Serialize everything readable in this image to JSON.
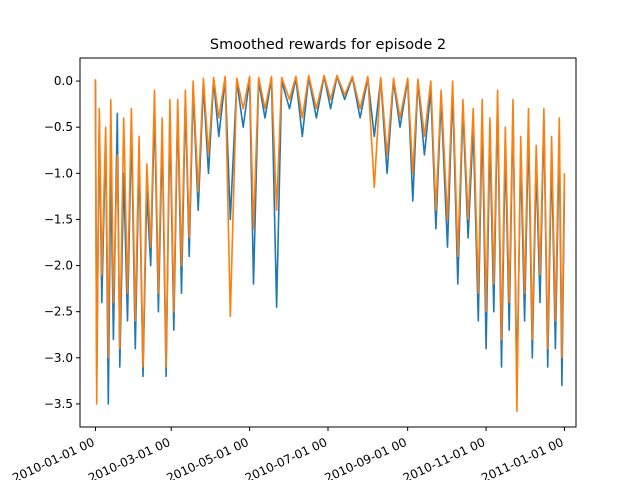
{
  "chart_data": {
    "type": "line",
    "title": "Smoothed rewards for episode 2",
    "xlabel": "",
    "ylabel": "",
    "x_axis": {
      "kind": "date",
      "range": [
        "2009-12-20",
        "2011-01-10"
      ],
      "ticks": [
        {
          "date": "2010-01-01",
          "label": "2010-01-01 00"
        },
        {
          "date": "2010-03-01",
          "label": "2010-03-01 00"
        },
        {
          "date": "2010-05-01",
          "label": "2010-05-01 00"
        },
        {
          "date": "2010-07-01",
          "label": "2010-07-01 00"
        },
        {
          "date": "2010-09-01",
          "label": "2010-09-01 00"
        },
        {
          "date": "2010-11-01",
          "label": "2010-11-01 00"
        },
        {
          "date": "2011-01-01",
          "label": "2011-01-01 00"
        }
      ]
    },
    "y_axis": {
      "range": [
        -3.75,
        0.25
      ],
      "ticks": [
        0.0,
        -0.5,
        -1.0,
        -1.5,
        -2.0,
        -2.5,
        -3.0,
        -3.5
      ],
      "tick_labels": [
        "0.0",
        "−0.5",
        "−1.0",
        "−1.5",
        "−2.0",
        "−2.5",
        "−3.0",
        "−3.5"
      ]
    },
    "grid": false,
    "legend": "none",
    "series": [
      {
        "color": "#1f77b4",
        "points": [
          [
            "2010-01-01",
            0.0
          ],
          [
            "2010-01-02",
            -3.2
          ],
          [
            "2010-01-04",
            -0.4
          ],
          [
            "2010-01-06",
            -2.4
          ],
          [
            "2010-01-09",
            -0.6
          ],
          [
            "2010-01-11",
            -3.5
          ],
          [
            "2010-01-13",
            -0.9
          ],
          [
            "2010-01-15",
            -2.8
          ],
          [
            "2010-01-18",
            -0.35
          ],
          [
            "2010-01-20",
            -3.1
          ],
          [
            "2010-01-23",
            -1.0
          ],
          [
            "2010-01-26",
            -2.6
          ],
          [
            "2010-01-29",
            -0.5
          ],
          [
            "2010-02-01",
            -2.9
          ],
          [
            "2010-02-04",
            -0.8
          ],
          [
            "2010-02-07",
            -3.2
          ],
          [
            "2010-02-10",
            -1.2
          ],
          [
            "2010-02-13",
            -2.0
          ],
          [
            "2010-02-16",
            -0.3
          ],
          [
            "2010-02-19",
            -2.5
          ],
          [
            "2010-02-22",
            -0.6
          ],
          [
            "2010-02-25",
            -3.2
          ],
          [
            "2010-02-28",
            -0.4
          ],
          [
            "2010-03-03",
            -2.7
          ],
          [
            "2010-03-06",
            -0.3
          ],
          [
            "2010-03-09",
            -2.3
          ],
          [
            "2010-03-12",
            -0.2
          ],
          [
            "2010-03-15",
            -1.9
          ],
          [
            "2010-03-18",
            -0.1
          ],
          [
            "2010-03-22",
            -1.4
          ],
          [
            "2010-03-26",
            -0.05
          ],
          [
            "2010-03-30",
            -1.0
          ],
          [
            "2010-04-03",
            0.0
          ],
          [
            "2010-04-07",
            -0.6
          ],
          [
            "2010-04-12",
            0.02
          ],
          [
            "2010-04-16",
            -1.5
          ],
          [
            "2010-04-21",
            0.0
          ],
          [
            "2010-04-26",
            -0.5
          ],
          [
            "2010-05-01",
            0.02
          ],
          [
            "2010-05-04",
            -2.2
          ],
          [
            "2010-05-08",
            0.0
          ],
          [
            "2010-05-13",
            -0.4
          ],
          [
            "2010-05-18",
            0.03
          ],
          [
            "2010-05-22",
            -2.45
          ],
          [
            "2010-05-26",
            0.0
          ],
          [
            "2010-06-01",
            -0.3
          ],
          [
            "2010-06-06",
            0.03
          ],
          [
            "2010-06-11",
            -0.6
          ],
          [
            "2010-06-16",
            0.04
          ],
          [
            "2010-06-22",
            -0.4
          ],
          [
            "2010-06-28",
            0.05
          ],
          [
            "2010-07-03",
            -0.3
          ],
          [
            "2010-07-08",
            0.05
          ],
          [
            "2010-07-14",
            -0.2
          ],
          [
            "2010-07-20",
            0.04
          ],
          [
            "2010-07-26",
            -0.4
          ],
          [
            "2010-08-01",
            0.03
          ],
          [
            "2010-08-06",
            -0.6
          ],
          [
            "2010-08-11",
            0.02
          ],
          [
            "2010-08-16",
            -1.0
          ],
          [
            "2010-08-21",
            0.0
          ],
          [
            "2010-08-26",
            -0.5
          ],
          [
            "2010-09-01",
            0.01
          ],
          [
            "2010-09-05",
            -1.3
          ],
          [
            "2010-09-09",
            0.0
          ],
          [
            "2010-09-14",
            -0.8
          ],
          [
            "2010-09-19",
            -0.1
          ],
          [
            "2010-09-23",
            -1.6
          ],
          [
            "2010-09-27",
            -0.2
          ],
          [
            "2010-10-02",
            -1.8
          ],
          [
            "2010-10-06",
            -0.1
          ],
          [
            "2010-10-10",
            -2.2
          ],
          [
            "2010-10-14",
            -0.3
          ],
          [
            "2010-10-18",
            -1.7
          ],
          [
            "2010-10-22",
            -0.5
          ],
          [
            "2010-10-26",
            -2.6
          ],
          [
            "2010-10-29",
            -0.4
          ],
          [
            "2010-11-01",
            -2.9
          ],
          [
            "2010-11-04",
            -0.6
          ],
          [
            "2010-11-07",
            -2.5
          ],
          [
            "2010-11-10",
            -0.2
          ],
          [
            "2010-11-13",
            -3.1
          ],
          [
            "2010-11-16",
            -0.7
          ],
          [
            "2010-11-19",
            -2.7
          ],
          [
            "2010-11-22",
            -0.3
          ],
          [
            "2010-11-25",
            -3.3
          ],
          [
            "2010-11-28",
            -0.8
          ],
          [
            "2010-12-01",
            -2.6
          ],
          [
            "2010-12-04",
            -0.5
          ],
          [
            "2010-12-07",
            -3.0
          ],
          [
            "2010-12-10",
            -0.9
          ],
          [
            "2010-12-13",
            -2.4
          ],
          [
            "2010-12-16",
            -0.4
          ],
          [
            "2010-12-19",
            -3.1
          ],
          [
            "2010-12-22",
            -0.8
          ],
          [
            "2010-12-25",
            -2.9
          ],
          [
            "2010-12-28",
            -0.6
          ],
          [
            "2010-12-30",
            -3.3
          ],
          [
            "2011-01-01",
            -1.2
          ]
        ]
      },
      {
        "color": "#ff7f0e",
        "points": [
          [
            "2010-01-01",
            0.02
          ],
          [
            "2010-01-02",
            -3.5
          ],
          [
            "2010-01-04",
            -0.3
          ],
          [
            "2010-01-06",
            -2.1
          ],
          [
            "2010-01-09",
            -0.5
          ],
          [
            "2010-01-11",
            -3.0
          ],
          [
            "2010-01-13",
            -0.2
          ],
          [
            "2010-01-15",
            -2.4
          ],
          [
            "2010-01-18",
            -0.8
          ],
          [
            "2010-01-20",
            -2.9
          ],
          [
            "2010-01-23",
            -0.4
          ],
          [
            "2010-01-26",
            -2.3
          ],
          [
            "2010-01-29",
            -0.3
          ],
          [
            "2010-02-01",
            -2.6
          ],
          [
            "2010-02-04",
            -0.6
          ],
          [
            "2010-02-07",
            -3.1
          ],
          [
            "2010-02-10",
            -0.9
          ],
          [
            "2010-02-13",
            -1.8
          ],
          [
            "2010-02-16",
            -0.1
          ],
          [
            "2010-02-19",
            -2.3
          ],
          [
            "2010-02-22",
            -0.4
          ],
          [
            "2010-02-25",
            -3.1
          ],
          [
            "2010-02-28",
            -0.2
          ],
          [
            "2010-03-03",
            -2.5
          ],
          [
            "2010-03-06",
            -0.2
          ],
          [
            "2010-03-09",
            -2.0
          ],
          [
            "2010-03-12",
            -0.1
          ],
          [
            "2010-03-15",
            -1.7
          ],
          [
            "2010-03-18",
            0.0
          ],
          [
            "2010-03-22",
            -1.2
          ],
          [
            "2010-03-26",
            0.03
          ],
          [
            "2010-03-30",
            -0.8
          ],
          [
            "2010-04-03",
            0.04
          ],
          [
            "2010-04-07",
            -0.4
          ],
          [
            "2010-04-12",
            0.05
          ],
          [
            "2010-04-16",
            -2.55
          ],
          [
            "2010-04-21",
            0.03
          ],
          [
            "2010-04-26",
            -0.3
          ],
          [
            "2010-05-01",
            0.05
          ],
          [
            "2010-05-04",
            -1.6
          ],
          [
            "2010-05-08",
            0.04
          ],
          [
            "2010-05-13",
            -0.3
          ],
          [
            "2010-05-18",
            0.05
          ],
          [
            "2010-05-22",
            -1.4
          ],
          [
            "2010-05-26",
            0.04
          ],
          [
            "2010-06-01",
            -0.2
          ],
          [
            "2010-06-06",
            0.05
          ],
          [
            "2010-06-11",
            -0.4
          ],
          [
            "2010-06-16",
            0.06
          ],
          [
            "2010-06-22",
            -0.3
          ],
          [
            "2010-06-28",
            0.06
          ],
          [
            "2010-07-03",
            -0.2
          ],
          [
            "2010-07-08",
            0.06
          ],
          [
            "2010-07-14",
            -0.15
          ],
          [
            "2010-07-20",
            0.05
          ],
          [
            "2010-07-26",
            -0.3
          ],
          [
            "2010-08-01",
            0.05
          ],
          [
            "2010-08-06",
            -1.15
          ],
          [
            "2010-08-11",
            0.04
          ],
          [
            "2010-08-16",
            -0.8
          ],
          [
            "2010-08-21",
            0.03
          ],
          [
            "2010-08-26",
            -0.4
          ],
          [
            "2010-09-01",
            0.03
          ],
          [
            "2010-09-05",
            -1.0
          ],
          [
            "2010-09-09",
            0.02
          ],
          [
            "2010-09-14",
            -0.6
          ],
          [
            "2010-09-19",
            0.0
          ],
          [
            "2010-09-23",
            -1.4
          ],
          [
            "2010-09-27",
            -0.1
          ],
          [
            "2010-10-02",
            -1.5
          ],
          [
            "2010-10-06",
            0.0
          ],
          [
            "2010-10-10",
            -1.9
          ],
          [
            "2010-10-14",
            -0.2
          ],
          [
            "2010-10-18",
            -1.5
          ],
          [
            "2010-10-22",
            -0.3
          ],
          [
            "2010-10-26",
            -2.3
          ],
          [
            "2010-10-29",
            -0.2
          ],
          [
            "2010-11-01",
            -2.5
          ],
          [
            "2010-11-04",
            -0.4
          ],
          [
            "2010-11-07",
            -2.2
          ],
          [
            "2010-11-10",
            -0.1
          ],
          [
            "2010-11-13",
            -2.8
          ],
          [
            "2010-11-16",
            -0.5
          ],
          [
            "2010-11-19",
            -2.4
          ],
          [
            "2010-11-22",
            -0.2
          ],
          [
            "2010-11-25",
            -3.58
          ],
          [
            "2010-11-28",
            -0.6
          ],
          [
            "2010-12-01",
            -2.3
          ],
          [
            "2010-12-04",
            -0.3
          ],
          [
            "2010-12-07",
            -2.8
          ],
          [
            "2010-12-10",
            -0.7
          ],
          [
            "2010-12-13",
            -2.1
          ],
          [
            "2010-12-16",
            -0.3
          ],
          [
            "2010-12-19",
            -2.9
          ],
          [
            "2010-12-22",
            -0.6
          ],
          [
            "2010-12-25",
            -2.6
          ],
          [
            "2010-12-28",
            -0.4
          ],
          [
            "2010-12-30",
            -3.0
          ],
          [
            "2011-01-01",
            -1.0
          ]
        ]
      }
    ]
  }
}
